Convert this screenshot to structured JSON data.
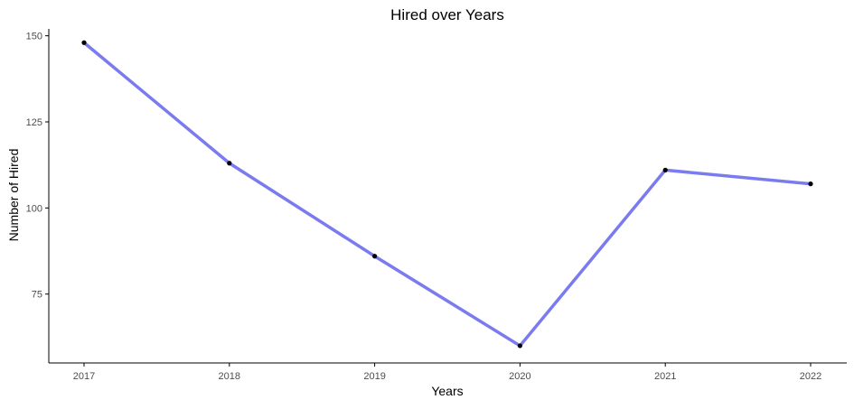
{
  "chart_data": {
    "type": "line",
    "title": "Hired over Years",
    "xlabel": "Years",
    "ylabel": "Number of Hired",
    "categories": [
      "2017",
      "2018",
      "2019",
      "2020",
      "2021",
      "2022"
    ],
    "series": [
      {
        "values": [
          148,
          113,
          86,
          60,
          111,
          107
        ]
      }
    ],
    "ylim": [
      55,
      152
    ],
    "yticks": [
      75,
      100,
      125,
      150
    ],
    "grid": false,
    "show_points": true,
    "colors": {
      "line": "#7b7bf0",
      "point": "#000000",
      "axis": "#000000",
      "tick_label": "#4d4d4d"
    }
  }
}
